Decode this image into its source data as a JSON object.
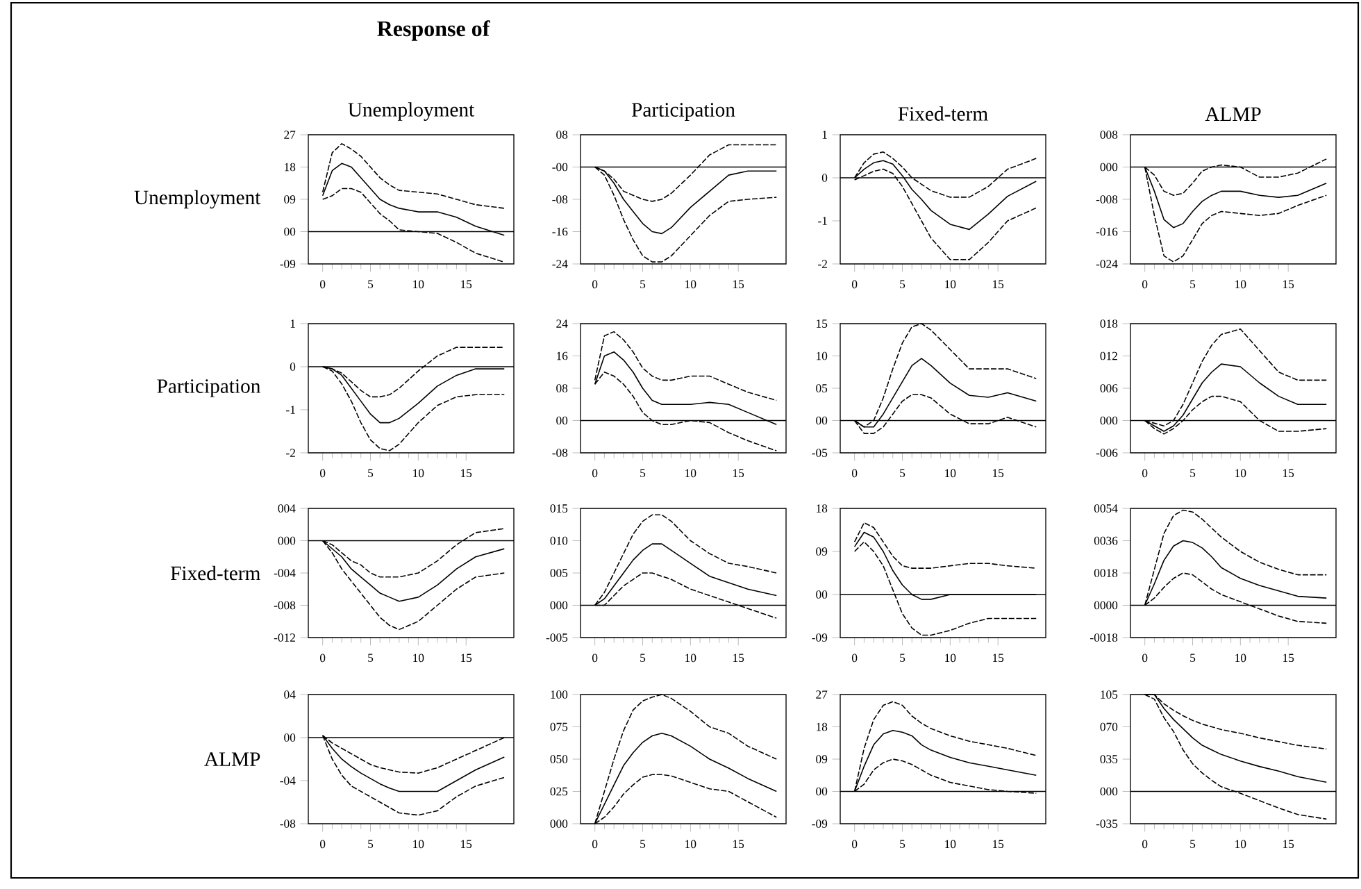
{
  "chart_data": [
    {
      "type": "line",
      "title": "Unemployment",
      "ylabel": "Unemployment",
      "annotations": [
        "Response of"
      ],
      "x": [
        0,
        1,
        2,
        3,
        4,
        5,
        6,
        7,
        8,
        10,
        12,
        14,
        16,
        19
      ],
      "xlim": [
        -1.5,
        20
      ],
      "xticks": [
        0,
        5,
        10,
        15
      ],
      "ylim": [
        -9,
        27
      ],
      "yticks": [
        27,
        18,
        {
          "value": 9,
          "label": "09"
        },
        {
          "value": 0,
          "label": "00"
        },
        {
          "value": -9,
          "label": "-09"
        }
      ],
      "ref_lines": [
        {
          "axis": "y",
          "value": 0
        }
      ],
      "series": [
        {
          "color": "#000000",
          "line_style": "solid",
          "values": [
            10,
            17,
            19,
            18,
            15,
            12,
            9,
            7.5,
            6.5,
            5.5,
            5.5,
            4,
            1.5,
            -1
          ]
        },
        {
          "color": "#000000",
          "line_style": "dashed",
          "values": [
            11,
            22,
            24.5,
            23,
            21,
            18,
            15,
            13,
            11.5,
            11,
            10.5,
            9,
            7.5,
            6.5
          ]
        },
        {
          "color": "#000000",
          "line_style": "dashed",
          "values": [
            9,
            10,
            12,
            12,
            11,
            8,
            5,
            3,
            0.5,
            0,
            -0.5,
            -3,
            -6,
            -8.5
          ]
        }
      ]
    },
    {
      "type": "line",
      "title": "Participation",
      "x": [
        0,
        1,
        2,
        3,
        4,
        5,
        6,
        7,
        8,
        10,
        12,
        14,
        16,
        19
      ],
      "xlim": [
        -1.5,
        20
      ],
      "xticks": [
        0,
        5,
        10,
        15
      ],
      "ylim": [
        -24,
        8
      ],
      "yticks": [
        {
          "value": 8,
          "label": "08"
        },
        {
          "value": 0,
          "label": "-00"
        },
        {
          "value": -8,
          "label": "-08"
        },
        -16,
        -24
      ],
      "ref_lines": [
        {
          "axis": "y",
          "value": 0
        }
      ],
      "series": [
        {
          "color": "#000000",
          "line_style": "solid",
          "values": [
            0,
            -1,
            -4,
            -8,
            -11,
            -14,
            -16,
            -16.5,
            -15,
            -10,
            -6,
            -2,
            -1,
            -1
          ]
        },
        {
          "color": "#000000",
          "line_style": "dashed",
          "values": [
            0,
            -1,
            -3,
            -6,
            -7,
            -8,
            -8.5,
            -8,
            -6.5,
            -2,
            3,
            5.5,
            5.5,
            5.5
          ]
        },
        {
          "color": "#000000",
          "line_style": "dashed",
          "values": [
            0,
            -2,
            -7,
            -13,
            -18,
            -22,
            -23.5,
            -23.5,
            -22,
            -17,
            -12,
            -8.5,
            -8,
            -7.5
          ]
        }
      ]
    },
    {
      "type": "line",
      "title": "Fixed-term",
      "x": [
        0,
        1,
        2,
        3,
        4,
        5,
        6,
        7,
        8,
        10,
        12,
        14,
        16,
        19
      ],
      "xlim": [
        -1.5,
        20
      ],
      "xticks": [
        0,
        5,
        10,
        15
      ],
      "ylim": [
        -2,
        1
      ],
      "yticks": [
        1,
        0,
        -1,
        -2
      ],
      "ref_lines": [
        {
          "axis": "y",
          "value": 0
        }
      ],
      "series": [
        {
          "color": "#000000",
          "line_style": "solid",
          "values": [
            0,
            0.2,
            0.35,
            0.4,
            0.32,
            0.05,
            -0.27,
            -0.5,
            -0.76,
            -1.08,
            -1.2,
            -0.84,
            -0.43,
            -0.08
          ]
        },
        {
          "color": "#000000",
          "line_style": "dashed",
          "values": [
            0,
            0.35,
            0.55,
            0.6,
            0.45,
            0.25,
            0,
            -0.15,
            -0.3,
            -0.45,
            -0.45,
            -0.2,
            0.2,
            0.45
          ]
        },
        {
          "color": "#000000",
          "line_style": "dashed",
          "values": [
            -0.05,
            0.05,
            0.15,
            0.2,
            0.1,
            -0.2,
            -0.6,
            -1.0,
            -1.4,
            -1.9,
            -1.9,
            -1.5,
            -1.0,
            -0.7
          ]
        }
      ]
    },
    {
      "type": "line",
      "title": "ALMP",
      "x": [
        0,
        1,
        2,
        3,
        4,
        5,
        6,
        7,
        8,
        10,
        12,
        14,
        16,
        19
      ],
      "xlim": [
        -1.5,
        20
      ],
      "xticks": [
        0,
        5,
        10,
        15
      ],
      "ylim": [
        -24,
        8
      ],
      "yticks": [
        {
          "value": 8,
          "label": "008"
        },
        {
          "value": 0,
          "label": "000"
        },
        {
          "value": -8,
          "label": "-008"
        },
        {
          "value": -16,
          "label": "-016"
        },
        {
          "value": -24,
          "label": "-024"
        }
      ],
      "ref_lines": [
        {
          "axis": "y",
          "value": 0
        }
      ],
      "series": [
        {
          "color": "#000000",
          "line_style": "solid",
          "values": [
            0,
            -6,
            -13,
            -15,
            -14,
            -11,
            -8.5,
            -7,
            -6,
            -6,
            -7,
            -7.5,
            -7,
            -4
          ]
        },
        {
          "color": "#000000",
          "line_style": "dashed",
          "values": [
            0,
            -2,
            -6,
            -7,
            -6.5,
            -4,
            -1,
            0,
            0.5,
            0,
            -2.5,
            -2.5,
            -1.5,
            2
          ]
        },
        {
          "color": "#000000",
          "line_style": "dashed",
          "values": [
            0,
            -12,
            -22,
            -23.5,
            -22,
            -18,
            -14,
            -12,
            -11,
            -11.5,
            -12,
            -11.5,
            -9.5,
            -7
          ]
        }
      ]
    },
    {
      "type": "line",
      "ylabel": "Participation",
      "x": [
        0,
        1,
        2,
        3,
        4,
        5,
        6,
        7,
        8,
        10,
        12,
        14,
        16,
        19
      ],
      "xlim": [
        -1.5,
        20
      ],
      "xticks": [
        0,
        5,
        10,
        15
      ],
      "ylim": [
        -2,
        1
      ],
      "yticks": [
        1,
        0,
        -1,
        -2
      ],
      "ref_lines": [
        {
          "axis": "y",
          "value": 0
        }
      ],
      "series": [
        {
          "color": "#000000",
          "line_style": "solid",
          "values": [
            0,
            -0.05,
            -0.2,
            -0.5,
            -0.8,
            -1.1,
            -1.3,
            -1.3,
            -1.2,
            -0.85,
            -0.45,
            -0.2,
            -0.05,
            -0.05
          ]
        },
        {
          "color": "#000000",
          "line_style": "dashed",
          "values": [
            0,
            -0.05,
            -0.15,
            -0.35,
            -0.55,
            -0.7,
            -0.7,
            -0.65,
            -0.5,
            -0.1,
            0.25,
            0.45,
            0.45,
            0.45
          ]
        },
        {
          "color": "#000000",
          "line_style": "dashed",
          "values": [
            0,
            -0.1,
            -0.4,
            -0.8,
            -1.3,
            -1.7,
            -1.9,
            -1.95,
            -1.8,
            -1.3,
            -0.9,
            -0.7,
            -0.65,
            -0.65
          ]
        }
      ]
    },
    {
      "type": "line",
      "x": [
        0,
        1,
        2,
        3,
        4,
        5,
        6,
        7,
        8,
        10,
        12,
        14,
        16,
        19
      ],
      "xlim": [
        -1.5,
        20
      ],
      "xticks": [
        0,
        5,
        10,
        15
      ],
      "ylim": [
        -8,
        24
      ],
      "yticks": [
        24,
        16,
        {
          "value": 8,
          "label": "08"
        },
        {
          "value": 0,
          "label": "00"
        },
        {
          "value": -8,
          "label": "-08"
        }
      ],
      "ref_lines": [
        {
          "axis": "y",
          "value": 0
        }
      ],
      "series": [
        {
          "color": "#000000",
          "line_style": "solid",
          "values": [
            9,
            16,
            17,
            15,
            12,
            8,
            5,
            4,
            4,
            4,
            4.5,
            4,
            2,
            -1
          ]
        },
        {
          "color": "#000000",
          "line_style": "dashed",
          "values": [
            10,
            21,
            22,
            20,
            17,
            13,
            11,
            10,
            10,
            11,
            11,
            9,
            7,
            5
          ]
        },
        {
          "color": "#000000",
          "line_style": "dashed",
          "values": [
            9,
            12,
            11,
            9,
            6,
            2,
            0,
            -1,
            -1,
            0,
            -0.5,
            -3,
            -5,
            -7.5
          ]
        }
      ]
    },
    {
      "type": "line",
      "x": [
        0,
        1,
        2,
        3,
        4,
        5,
        6,
        7,
        8,
        10,
        12,
        14,
        16,
        19
      ],
      "xlim": [
        -1.5,
        20
      ],
      "xticks": [
        0,
        5,
        10,
        15
      ],
      "ylim": [
        -5,
        15
      ],
      "yticks": [
        15,
        10,
        {
          "value": 5,
          "label": "05"
        },
        {
          "value": 0,
          "label": "00"
        },
        {
          "value": -5,
          "label": "-05"
        }
      ],
      "ref_lines": [
        {
          "axis": "y",
          "value": 0
        }
      ],
      "series": [
        {
          "color": "#000000",
          "line_style": "solid",
          "values": [
            0,
            -1,
            -1,
            1,
            3.5,
            6,
            8.5,
            9.6,
            8.5,
            5.8,
            3.9,
            3.6,
            4.3,
            3
          ]
        },
        {
          "color": "#000000",
          "line_style": "dashed",
          "values": [
            0,
            -1,
            0,
            3.5,
            8,
            12,
            14.5,
            15,
            14,
            11,
            8,
            8,
            8,
            6.5
          ]
        },
        {
          "color": "#000000",
          "line_style": "dashed",
          "values": [
            0,
            -2,
            -2,
            -1,
            1,
            3,
            4,
            4,
            3.5,
            1,
            -0.5,
            -0.5,
            0.5,
            -1
          ]
        }
      ]
    },
    {
      "type": "line",
      "x": [
        0,
        1,
        2,
        3,
        4,
        5,
        6,
        7,
        8,
        10,
        12,
        14,
        16,
        19
      ],
      "xlim": [
        -1.5,
        20
      ],
      "xticks": [
        0,
        5,
        10,
        15
      ],
      "ylim": [
        -6,
        18
      ],
      "yticks": [
        {
          "value": 18,
          "label": "018"
        },
        {
          "value": 12,
          "label": "012"
        },
        {
          "value": 6,
          "label": "006"
        },
        {
          "value": 0,
          "label": "000"
        },
        {
          "value": -6,
          "label": "-006"
        }
      ],
      "ref_lines": [
        {
          "axis": "y",
          "value": 0
        }
      ],
      "series": [
        {
          "color": "#000000",
          "line_style": "solid",
          "values": [
            0,
            -1,
            -2,
            -1,
            1,
            4,
            7,
            9,
            10.5,
            10,
            7,
            4.5,
            3,
            3
          ]
        },
        {
          "color": "#000000",
          "line_style": "dashed",
          "values": [
            0,
            -0.5,
            -1,
            0,
            3,
            7,
            11,
            14,
            16,
            17,
            13,
            9,
            7.5,
            7.5
          ]
        },
        {
          "color": "#000000",
          "line_style": "dashed",
          "values": [
            0,
            -1.5,
            -2.5,
            -1.5,
            0,
            2,
            3.5,
            4.5,
            4.5,
            3.5,
            0,
            -2,
            -2,
            -1.5
          ]
        }
      ]
    },
    {
      "type": "line",
      "ylabel": "Fixed-term",
      "x": [
        0,
        1,
        2,
        3,
        4,
        5,
        6,
        7,
        8,
        10,
        12,
        14,
        16,
        19
      ],
      "xlim": [
        -1.5,
        20
      ],
      "xticks": [
        0,
        5,
        10,
        15
      ],
      "ylim": [
        -12,
        4
      ],
      "yticks": [
        {
          "value": 4,
          "label": "004"
        },
        {
          "value": 0,
          "label": "000"
        },
        {
          "value": -4,
          "label": "-004"
        },
        {
          "value": -8,
          "label": "-008"
        },
        {
          "value": -12,
          "label": "-012"
        }
      ],
      "ref_lines": [
        {
          "axis": "y",
          "value": 0
        }
      ],
      "series": [
        {
          "color": "#000000",
          "line_style": "solid",
          "values": [
            0,
            -1,
            -2,
            -3.5,
            -4.5,
            -5.5,
            -6.5,
            -7,
            -7.5,
            -7,
            -5.5,
            -3.5,
            -2,
            -1
          ]
        },
        {
          "color": "#000000",
          "line_style": "dashed",
          "values": [
            0,
            -0.5,
            -1.5,
            -2.5,
            -3,
            -4,
            -4.5,
            -4.5,
            -4.5,
            -4,
            -2.5,
            -0.5,
            1,
            1.5
          ]
        },
        {
          "color": "#000000",
          "line_style": "dashed",
          "values": [
            0,
            -1.5,
            -3.5,
            -5,
            -6.5,
            -8,
            -9.5,
            -10.5,
            -11,
            -10,
            -8,
            -6,
            -4.5,
            -4
          ]
        }
      ]
    },
    {
      "type": "line",
      "x": [
        0,
        1,
        2,
        3,
        4,
        5,
        6,
        7,
        8,
        10,
        12,
        14,
        16,
        19
      ],
      "xlim": [
        -1.5,
        20
      ],
      "xticks": [
        0,
        5,
        10,
        15
      ],
      "ylim": [
        -5,
        15
      ],
      "yticks": [
        {
          "value": 15,
          "label": "015"
        },
        {
          "value": 10,
          "label": "010"
        },
        {
          "value": 5,
          "label": "005"
        },
        {
          "value": 0,
          "label": "000"
        },
        {
          "value": -5,
          "label": "-005"
        }
      ],
      "ref_lines": [
        {
          "axis": "y",
          "value": 0
        }
      ],
      "series": [
        {
          "color": "#000000",
          "line_style": "solid",
          "values": [
            0,
            1,
            3,
            5,
            7,
            8.5,
            9.5,
            9.5,
            8.5,
            6.5,
            4.5,
            3.5,
            2.5,
            1.5
          ]
        },
        {
          "color": "#000000",
          "line_style": "dashed",
          "values": [
            0,
            2,
            5,
            8,
            11,
            13,
            14,
            14,
            13,
            10,
            8,
            6.5,
            6,
            5
          ]
        },
        {
          "color": "#000000",
          "line_style": "dashed",
          "values": [
            0,
            0,
            1.5,
            3,
            4,
            5,
            5,
            4.5,
            4,
            2.5,
            1.5,
            0.5,
            -0.5,
            -2
          ]
        }
      ]
    },
    {
      "type": "line",
      "x": [
        0,
        1,
        2,
        3,
        4,
        5,
        6,
        7,
        8,
        10,
        12,
        14,
        16,
        19
      ],
      "xlim": [
        -1.5,
        20
      ],
      "xticks": [
        0,
        5,
        10,
        15
      ],
      "ylim": [
        -9,
        18
      ],
      "yticks": [
        18,
        {
          "value": 9,
          "label": "09"
        },
        {
          "value": 0,
          "label": "00"
        },
        {
          "value": -9,
          "label": "-09"
        }
      ],
      "ref_lines": [
        {
          "axis": "y",
          "value": 0
        }
      ],
      "series": [
        {
          "color": "#000000",
          "line_style": "solid",
          "values": [
            10,
            13,
            12,
            9,
            5,
            2,
            0,
            -1,
            -1,
            0,
            0,
            0,
            0,
            0
          ]
        },
        {
          "color": "#000000",
          "line_style": "dashed",
          "values": [
            11,
            15,
            14,
            11,
            8,
            6,
            5.5,
            5.5,
            5.5,
            6,
            6.5,
            6.5,
            6,
            5.5
          ]
        },
        {
          "color": "#000000",
          "line_style": "dashed",
          "values": [
            9,
            11,
            9,
            6,
            1,
            -4,
            -7,
            -8.5,
            -8.5,
            -7.5,
            -6,
            -5,
            -5,
            -5
          ]
        }
      ]
    },
    {
      "type": "line",
      "x": [
        0,
        1,
        2,
        3,
        4,
        5,
        6,
        7,
        8,
        10,
        12,
        14,
        16,
        19
      ],
      "xlim": [
        -1.5,
        20
      ],
      "xticks": [
        0,
        5,
        10,
        15
      ],
      "ylim": [
        -18,
        54
      ],
      "yticks": [
        {
          "value": 54,
          "label": "0054"
        },
        {
          "value": 36,
          "label": "0036"
        },
        {
          "value": 18,
          "label": "0018"
        },
        {
          "value": 0,
          "label": "0000"
        },
        {
          "value": -18,
          "label": "-0018"
        }
      ],
      "ref_lines": [
        {
          "axis": "y",
          "value": 0
        }
      ],
      "series": [
        {
          "color": "#000000",
          "line_style": "solid",
          "values": [
            0,
            12,
            25,
            33,
            36,
            35,
            32,
            27,
            21,
            15,
            11,
            8,
            5,
            4
          ]
        },
        {
          "color": "#000000",
          "line_style": "dashed",
          "values": [
            0,
            20,
            40,
            50,
            53,
            52,
            48,
            43,
            38,
            30,
            24,
            20,
            17,
            17
          ]
        },
        {
          "color": "#000000",
          "line_style": "dashed",
          "values": [
            0,
            4,
            10,
            15,
            18,
            17,
            13,
            9,
            6,
            2,
            -2,
            -6,
            -9,
            -10
          ]
        }
      ]
    },
    {
      "type": "line",
      "ylabel": "ALMP",
      "x": [
        0,
        1,
        2,
        3,
        4,
        5,
        6,
        7,
        8,
        10,
        12,
        14,
        16,
        19
      ],
      "xlim": [
        -1.5,
        20
      ],
      "xticks": [
        0,
        5,
        10,
        15
      ],
      "ylim": [
        -8,
        4
      ],
      "yticks": [
        {
          "value": 4,
          "label": "04"
        },
        {
          "value": 0,
          "label": "00"
        },
        {
          "value": -4,
          "label": "-04"
        },
        {
          "value": -8,
          "label": "-08"
        }
      ],
      "ref_lines": [
        {
          "axis": "y",
          "value": 0
        }
      ],
      "series": [
        {
          "color": "#000000",
          "line_style": "solid",
          "values": [
            0.2,
            -1,
            -2,
            -2.7,
            -3.3,
            -3.8,
            -4.3,
            -4.7,
            -5,
            -5,
            -5,
            -4,
            -3,
            -1.8
          ]
        },
        {
          "color": "#000000",
          "line_style": "dashed",
          "values": [
            0.2,
            -0.5,
            -1,
            -1.5,
            -2,
            -2.5,
            -2.8,
            -3,
            -3.2,
            -3.3,
            -2.8,
            -2,
            -1.2,
            0
          ]
        },
        {
          "color": "#000000",
          "line_style": "dashed",
          "values": [
            0.2,
            -2,
            -3.5,
            -4.5,
            -5,
            -5.5,
            -6,
            -6.5,
            -7,
            -7.2,
            -6.8,
            -5.5,
            -4.5,
            -3.7
          ]
        }
      ]
    },
    {
      "type": "line",
      "x": [
        0,
        1,
        2,
        3,
        4,
        5,
        6,
        7,
        8,
        10,
        12,
        14,
        16,
        19
      ],
      "xlim": [
        -1.5,
        20
      ],
      "xticks": [
        0,
        5,
        10,
        15
      ],
      "ylim": [
        0,
        100
      ],
      "yticks": [
        100,
        {
          "value": 75,
          "label": "075"
        },
        {
          "value": 50,
          "label": "050"
        },
        {
          "value": 25,
          "label": "025"
        },
        {
          "value": 0,
          "label": "000"
        }
      ],
      "series": [
        {
          "color": "#000000",
          "line_style": "solid",
          "values": [
            0,
            15,
            30,
            45,
            55,
            63,
            68,
            70,
            68,
            60,
            50,
            43,
            35,
            25
          ]
        },
        {
          "color": "#000000",
          "line_style": "dashed",
          "values": [
            0,
            25,
            50,
            72,
            88,
            95,
            98,
            100,
            97,
            87,
            75,
            70,
            60,
            50
          ]
        },
        {
          "color": "#000000",
          "line_style": "dashed",
          "values": [
            0,
            5,
            13,
            23,
            30,
            36,
            38,
            38,
            37,
            32,
            27,
            25,
            17,
            5
          ]
        }
      ]
    },
    {
      "type": "line",
      "x": [
        0,
        1,
        2,
        3,
        4,
        5,
        6,
        7,
        8,
        10,
        12,
        14,
        16,
        19
      ],
      "xlim": [
        -1.5,
        20
      ],
      "xticks": [
        0,
        5,
        10,
        15
      ],
      "ylim": [
        -9,
        27
      ],
      "yticks": [
        27,
        18,
        {
          "value": 9,
          "label": "09"
        },
        {
          "value": 0,
          "label": "00"
        },
        {
          "value": -9,
          "label": "-09"
        }
      ],
      "ref_lines": [
        {
          "axis": "y",
          "value": 0
        }
      ],
      "series": [
        {
          "color": "#000000",
          "line_style": "solid",
          "values": [
            0,
            7,
            13,
            16,
            17,
            16.5,
            15.5,
            13,
            11.5,
            9.5,
            8,
            7,
            6,
            4.5
          ]
        },
        {
          "color": "#000000",
          "line_style": "dashed",
          "values": [
            0,
            12,
            20,
            24,
            25,
            24,
            21,
            19,
            17.5,
            15.5,
            14,
            13,
            12,
            10
          ]
        },
        {
          "color": "#000000",
          "line_style": "dashed",
          "values": [
            0,
            2,
            6,
            8,
            9,
            8.5,
            7.5,
            6,
            4.5,
            2.5,
            1.5,
            0.5,
            0,
            -0.5
          ]
        }
      ]
    },
    {
      "type": "line",
      "x": [
        0,
        1,
        2,
        3,
        4,
        5,
        6,
        7,
        8,
        10,
        12,
        14,
        16,
        19
      ],
      "xlim": [
        -1.5,
        20
      ],
      "xticks": [
        0,
        5,
        10,
        15
      ],
      "ylim": [
        -35,
        105
      ],
      "yticks": [
        105,
        {
          "value": 70,
          "label": "070"
        },
        {
          "value": 35,
          "label": "035"
        },
        {
          "value": 0,
          "label": "000"
        },
        {
          "value": -35,
          "label": "-035"
        }
      ],
      "ref_lines": [
        {
          "axis": "y",
          "value": 0
        }
      ],
      "series": [
        {
          "color": "#000000",
          "line_style": "solid",
          "values": [
            105,
            105,
            90,
            78,
            68,
            58,
            50,
            45,
            40,
            33,
            27,
            22,
            16,
            10
          ]
        },
        {
          "color": "#000000",
          "line_style": "dashed",
          "values": [
            105,
            105,
            95,
            88,
            82,
            77,
            73,
            70,
            67,
            63,
            58,
            54,
            50,
            46
          ]
        },
        {
          "color": "#000000",
          "line_style": "dashed",
          "values": [
            105,
            100,
            80,
            65,
            45,
            30,
            20,
            12,
            5,
            -2,
            -10,
            -18,
            -25,
            -30
          ]
        }
      ]
    }
  ]
}
